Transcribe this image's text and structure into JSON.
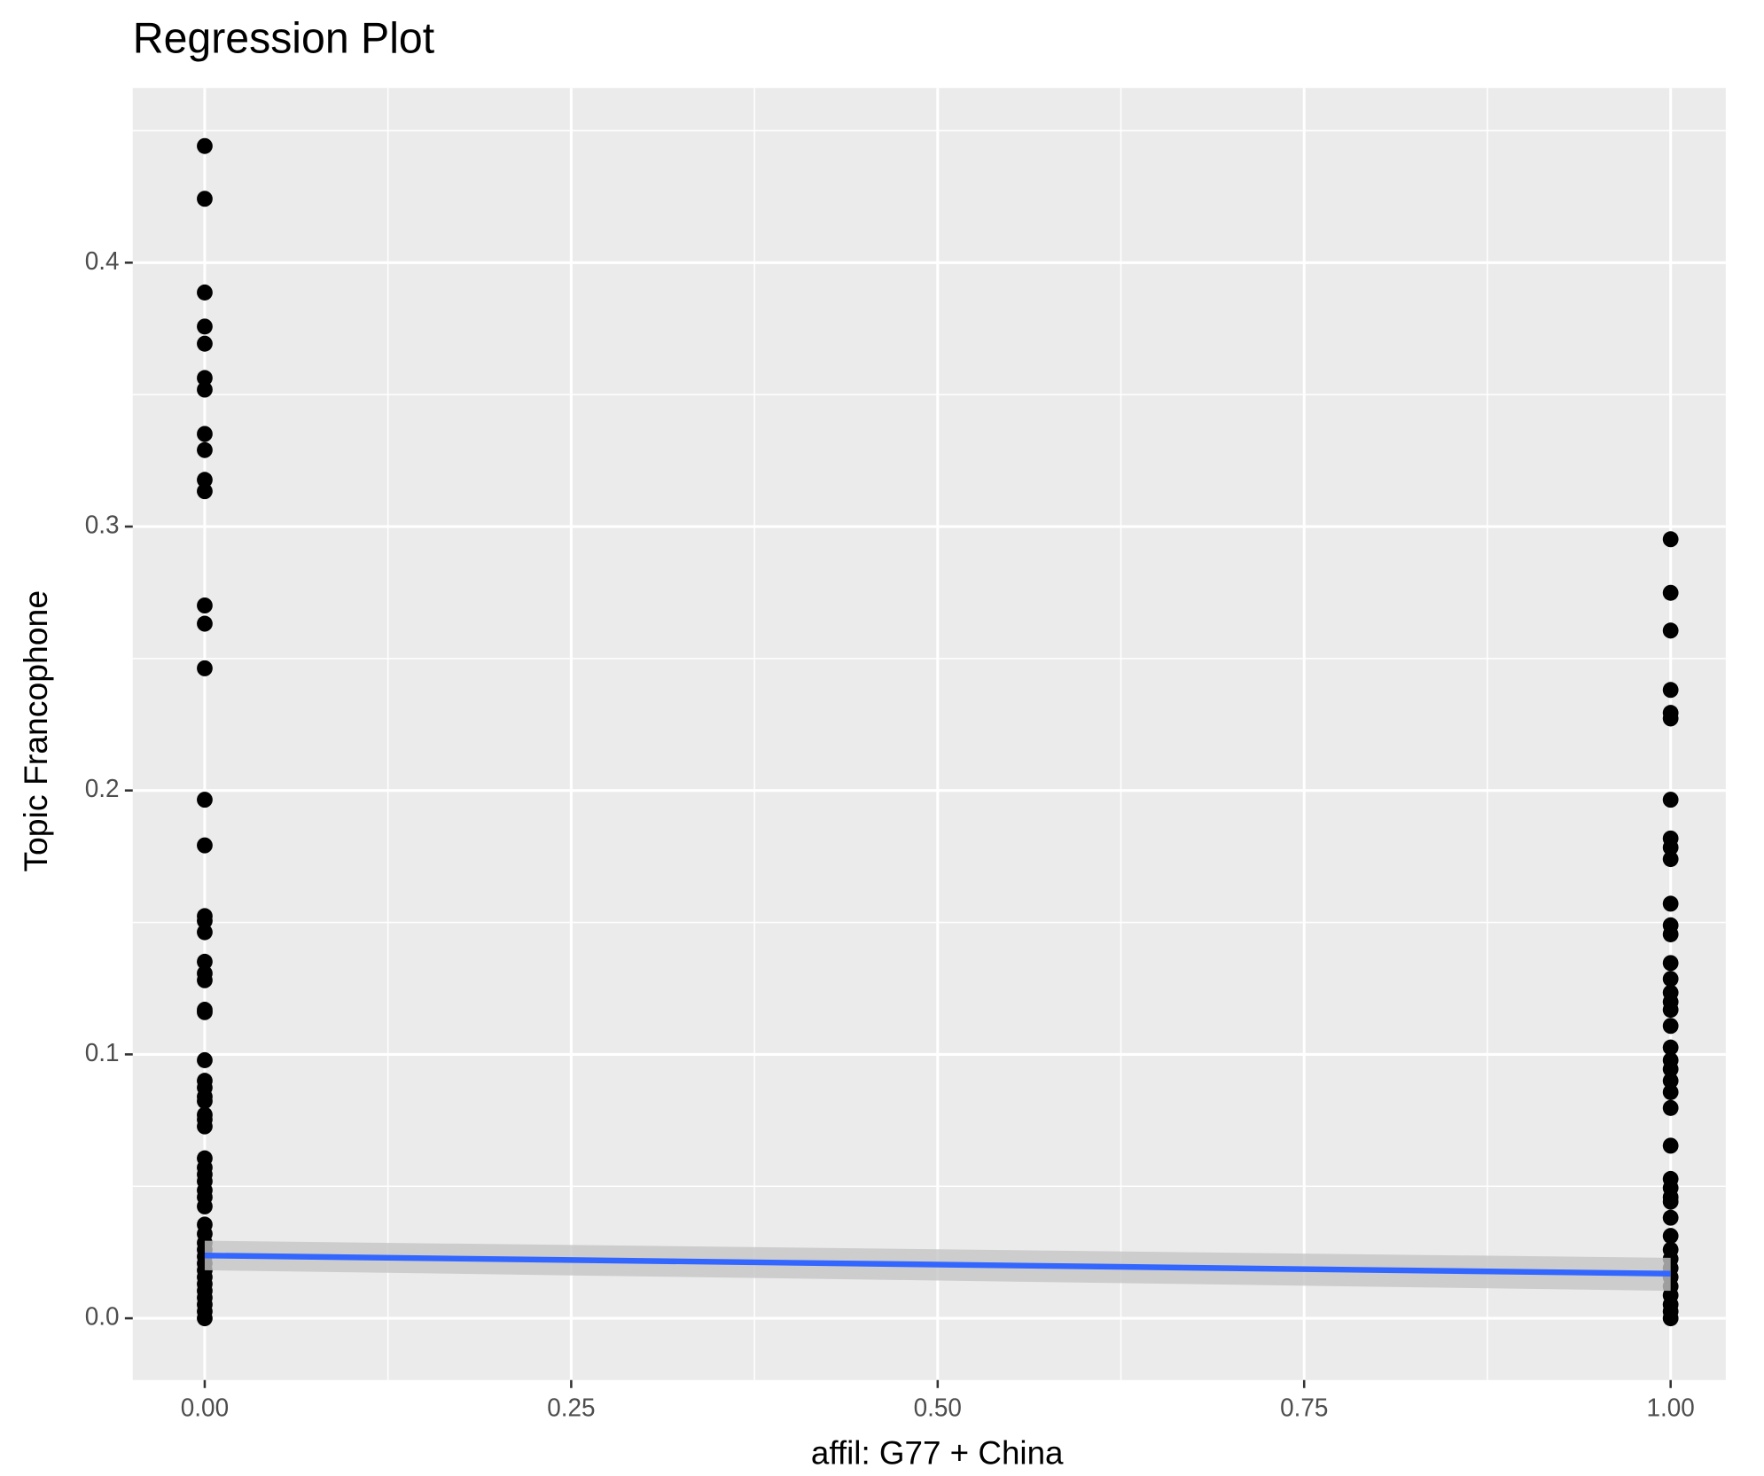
{
  "chart_data": {
    "type": "scatter",
    "title": "Regression Plot",
    "x_label": "affil: G77 + China",
    "y_label": "Topic Francophone",
    "x": [
      0,
      0,
      0,
      0,
      0,
      0,
      0,
      0,
      0,
      0,
      0,
      0,
      0,
      0,
      0,
      0,
      0,
      0,
      0,
      0,
      0,
      0,
      0,
      0,
      0,
      0,
      0,
      0,
      0,
      0,
      0,
      0,
      0,
      0,
      0,
      0,
      0,
      0,
      0,
      0,
      0,
      0,
      0,
      0,
      0,
      0,
      0,
      0,
      0,
      0,
      0,
      0,
      0,
      1,
      1,
      1,
      1,
      1,
      1,
      1,
      1,
      1,
      1,
      1,
      1,
      1,
      1,
      1,
      1,
      1,
      1,
      1,
      1,
      1,
      1,
      1,
      1,
      1,
      1,
      1,
      1,
      1,
      1,
      1,
      1,
      1,
      1,
      1,
      1,
      1,
      1,
      1,
      1,
      1
    ],
    "y": [
      0.4442,
      0.4242,
      0.3887,
      0.3758,
      0.3693,
      0.3563,
      0.3519,
      0.3351,
      0.329,
      0.3177,
      0.3134,
      0.2701,
      0.2632,
      0.2463,
      0.1965,
      0.1792,
      0.1524,
      0.1506,
      0.1463,
      0.1351,
      0.1307,
      0.1281,
      0.1169,
      0.116,
      0.0978,
      0.09,
      0.0874,
      0.084,
      0.0823,
      0.0771,
      0.0753,
      0.0727,
      0.0606,
      0.0571,
      0.0545,
      0.0519,
      0.0485,
      0.0459,
      0.0424,
      0.0355,
      0.032,
      0.0286,
      0.026,
      0.0234,
      0.0208,
      0.0182,
      0.0156,
      0.013,
      0.0104,
      0.0078,
      0.0052,
      0.0026,
      0,
      0.2952,
      0.2749,
      0.2606,
      0.2381,
      0.2294,
      0.2273,
      0.1965,
      0.1818,
      0.1784,
      0.174,
      0.1571,
      0.1489,
      0.1455,
      0.1346,
      0.1286,
      0.1234,
      0.1199,
      0.1169,
      0.1108,
      0.1026,
      0.0978,
      0.0944,
      0.09,
      0.0857,
      0.0797,
      0.0654,
      0.0528,
      0.0494,
      0.0459,
      0.0442,
      0.0381,
      0.0312,
      0.026,
      0.0225,
      0.019,
      0.0156,
      0.0121,
      0.0087,
      0.0052,
      0.0026,
      0
    ],
    "color": "#000000",
    "fit": {
      "x": [
        0,
        1
      ],
      "y": [
        0.0238,
        0.0169
      ],
      "lower": [
        0.0182,
        0.0104
      ],
      "upper": [
        0.0294,
        0.0229
      ],
      "color": "#3366ff",
      "band_color": "#c6c6c6"
    },
    "xlim": [
      -0.0491,
      1.0376
    ],
    "ylim": [
      -0.0234,
      0.4662
    ],
    "xticks": [
      {
        "value": 0,
        "label": "0.00"
      },
      {
        "value": 0.25,
        "label": "0.25"
      },
      {
        "value": 0.5,
        "label": "0.50"
      },
      {
        "value": 0.75,
        "label": "0.75"
      },
      {
        "value": 1,
        "label": "1.00"
      }
    ],
    "yticks": [
      {
        "value": 0,
        "label": "0.0"
      },
      0.1,
      0.2,
      0.3,
      0.4
    ],
    "minor_xticks": [
      0.125,
      0.375,
      0.625,
      0.875
    ],
    "minor_yticks": [
      0.05,
      0.15,
      0.25,
      0.35,
      0.45
    ],
    "grid": true
  }
}
